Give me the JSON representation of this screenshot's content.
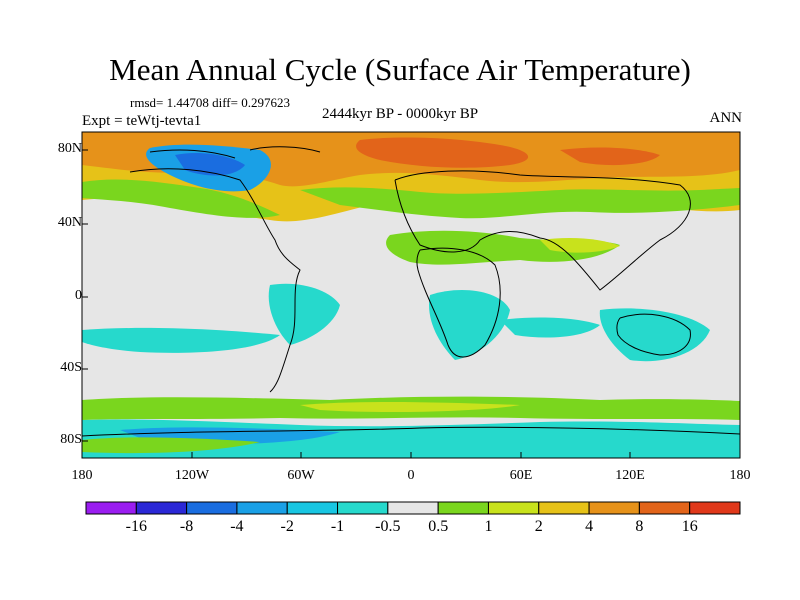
{
  "title": "Mean Annual Cycle (Surface Air Temperature)",
  "stats": "rmsd= 1.44708 diff= 0.297623",
  "experiment": "Expt = teWtj-tevta1",
  "period": "2444kyr BP - 0000kyr BP",
  "season": "ANN",
  "lat_labels": [
    "80N",
    "40N",
    "0",
    "40S",
    "80S"
  ],
  "lon_labels": [
    "180",
    "120W",
    "60W",
    "0",
    "60E",
    "120E",
    "180"
  ],
  "colorbar": {
    "labels": [
      "-16",
      "-8",
      "-4",
      "-2",
      "-1",
      "-0.5",
      "0.5",
      "1",
      "2",
      "4",
      "8",
      "16"
    ],
    "colors": [
      "#9a1df0",
      "#2b28d6",
      "#1a6de0",
      "#1aa0e6",
      "#18c6e2",
      "#26d9cc",
      "#e6e6e6",
      "#7ad61e",
      "#c8e21c",
      "#e6c218",
      "#e6921a",
      "#e2641a",
      "#e0381a"
    ]
  }
}
